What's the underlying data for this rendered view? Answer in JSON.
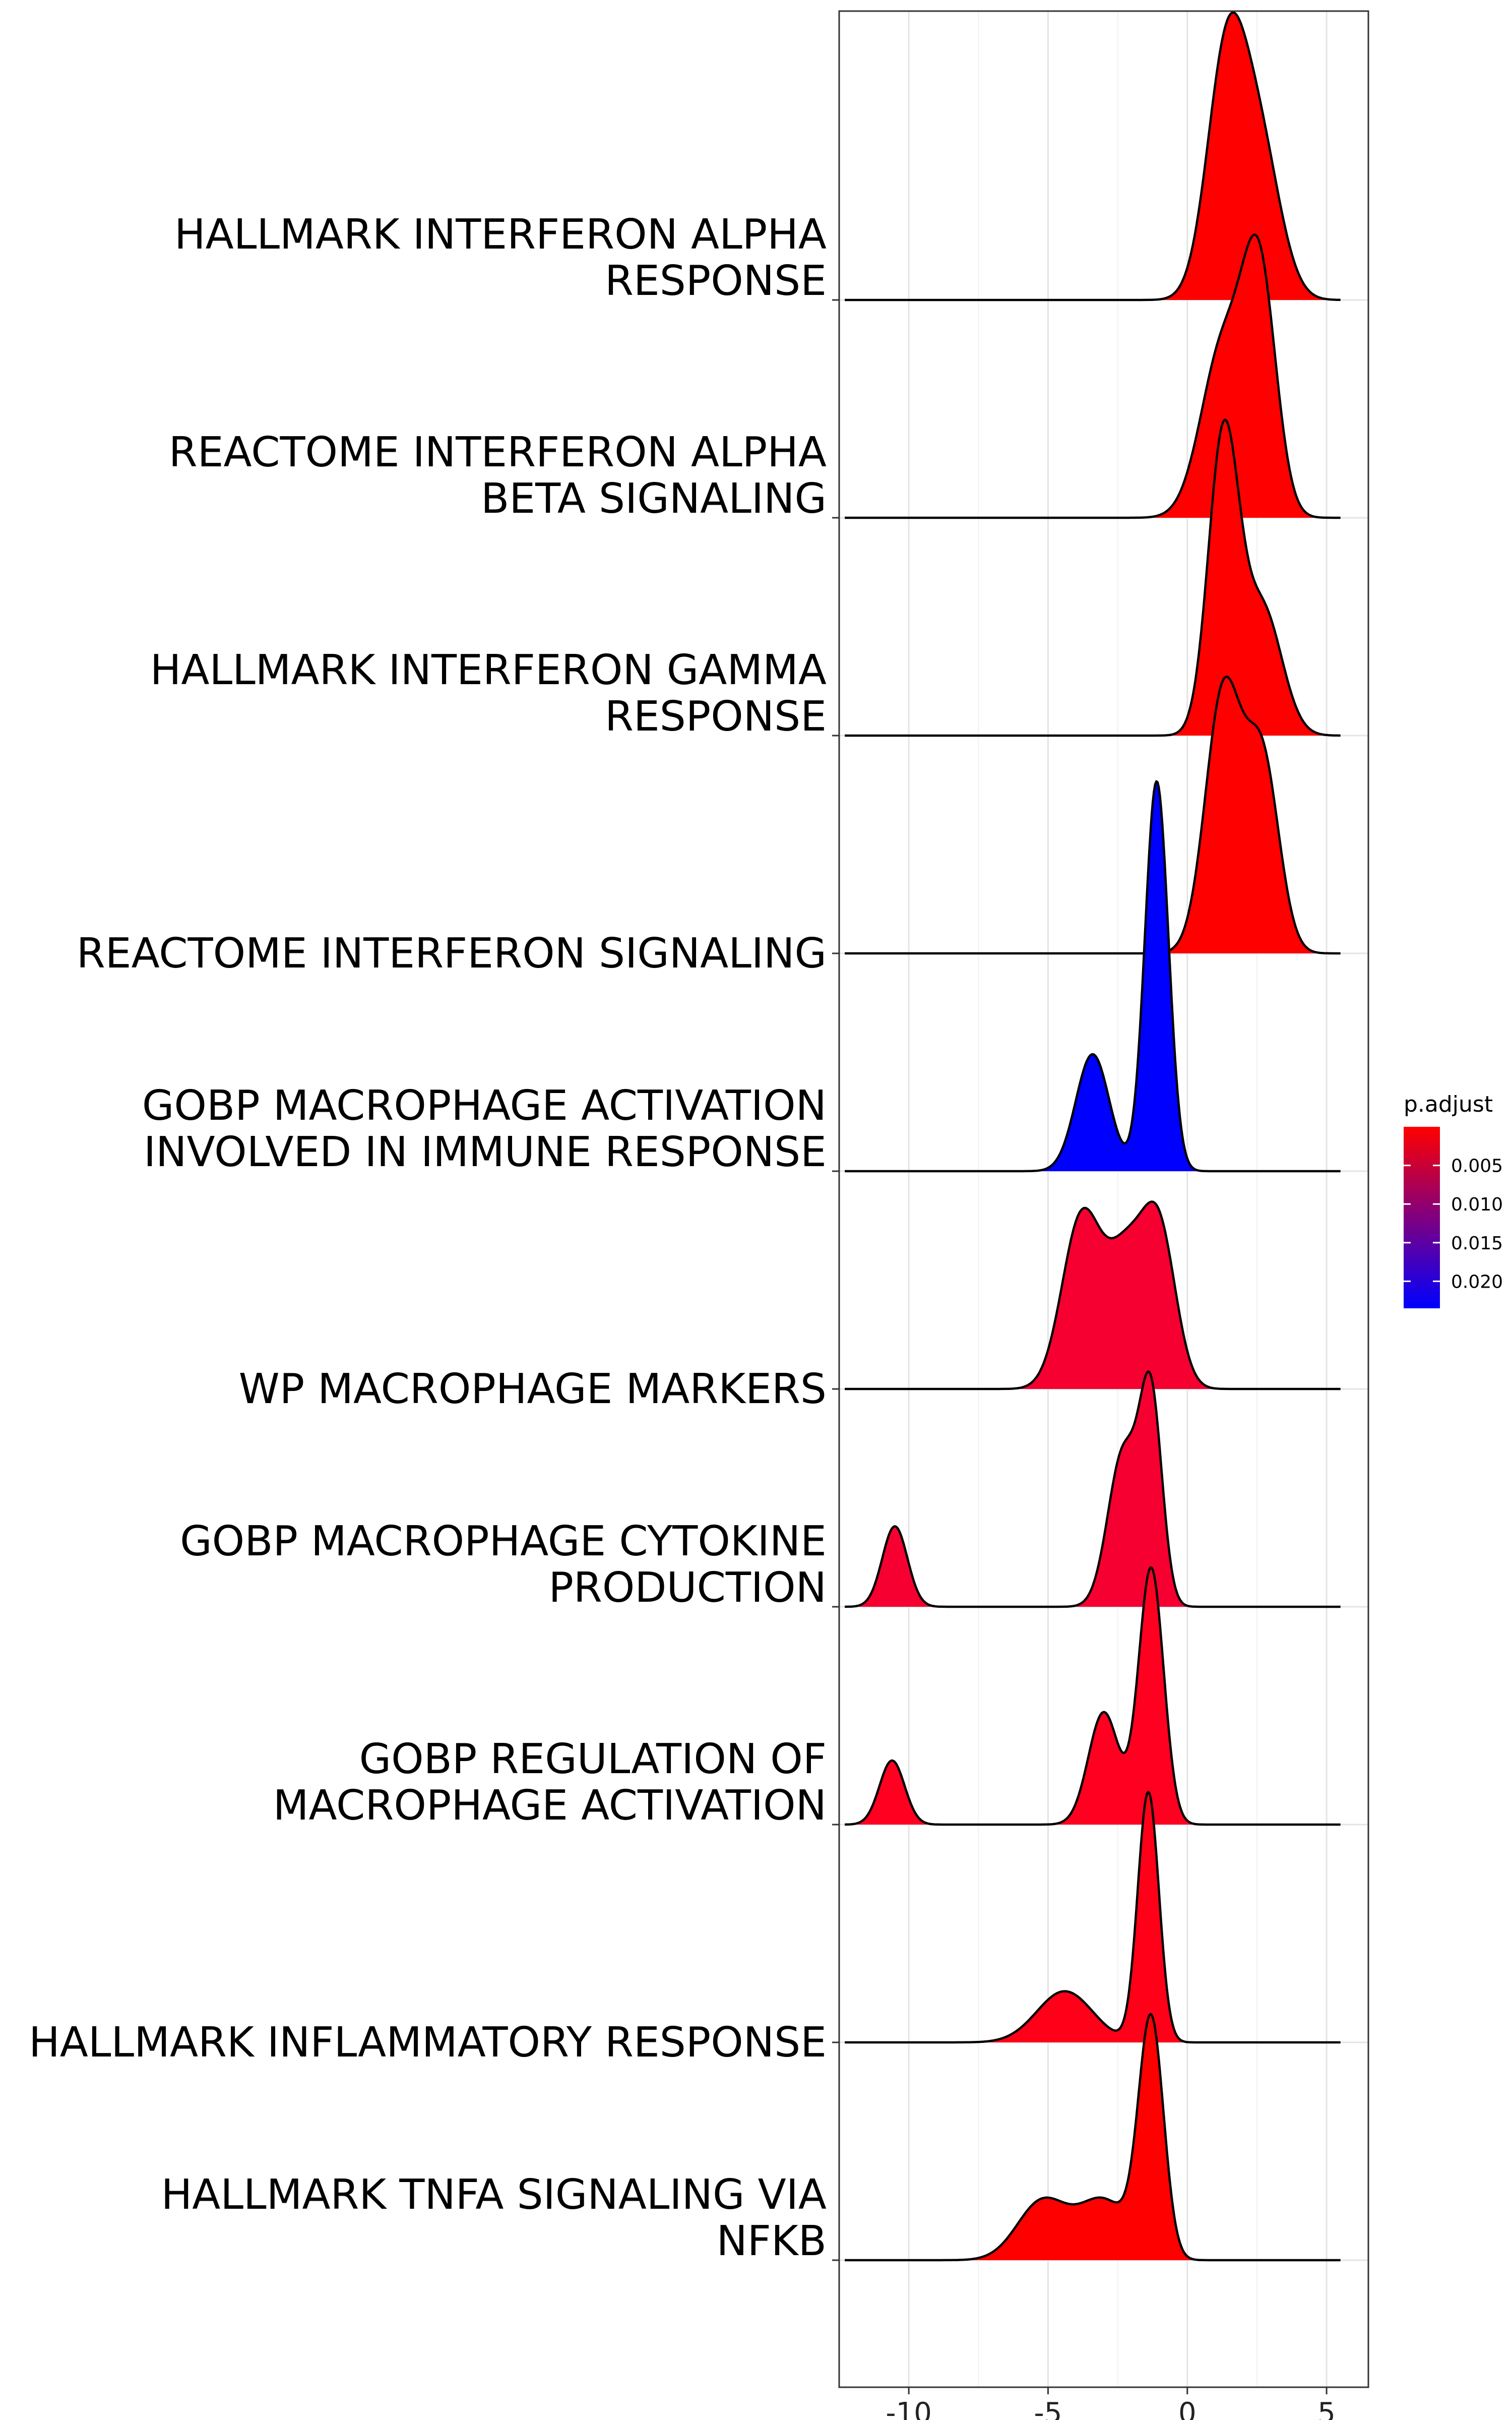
{
  "chart_data": {
    "type": "ridgeline",
    "title": "",
    "xlabel": "",
    "ylabel": "",
    "xlim": [
      -12.5,
      6.5
    ],
    "x_ticks": [
      -10,
      -5,
      0,
      5
    ],
    "x_tick_labels": [
      "-10",
      "-5",
      "0",
      "5"
    ],
    "grid": true,
    "legend": {
      "title": "p.adjust",
      "placement": "right",
      "range": [
        0.0,
        0.0235
      ],
      "ticks": [
        0.005,
        0.01,
        0.015,
        0.02
      ],
      "tick_labels": [
        "0.005",
        "0.010",
        "0.015",
        "0.020"
      ],
      "low_color": "#ff0000",
      "high_color": "#0000ff"
    },
    "density_domain": [
      -12.3,
      5.5
    ],
    "series": [
      {
        "name": "HALLMARK INTERFERON ALPHA RESPONSE",
        "label_lines": [
          "HALLMARK INTERFERON ALPHA",
          "RESPONSE"
        ],
        "p_adjust": 0.0,
        "color": "#ff0000",
        "peak_height": 1.32,
        "components": [
          {
            "mean": 1.4,
            "sd": 0.7,
            "weight": 0.6
          },
          {
            "mean": 2.6,
            "sd": 0.75,
            "weight": 0.4
          }
        ]
      },
      {
        "name": "REACTOME INTERFERON ALPHA BETA SIGNALING",
        "label_lines": [
          "REACTOME INTERFERON ALPHA",
          "BETA SIGNALING"
        ],
        "p_adjust": 0.0,
        "color": "#ff0000",
        "peak_height": 1.3,
        "components": [
          {
            "mean": 1.3,
            "sd": 0.8,
            "weight": 0.5
          },
          {
            "mean": 2.6,
            "sd": 0.6,
            "weight": 0.5
          }
        ]
      },
      {
        "name": "HALLMARK INTERFERON GAMMA RESPONSE",
        "label_lines": [
          "HALLMARK INTERFERON GAMMA",
          "RESPONSE"
        ],
        "p_adjust": 0.0,
        "color": "#ff0000",
        "peak_height": 1.45,
        "components": [
          {
            "mean": 1.3,
            "sd": 0.55,
            "weight": 0.65
          },
          {
            "mean": 2.7,
            "sd": 0.7,
            "weight": 0.35
          }
        ]
      },
      {
        "name": "REACTOME INTERFERON SIGNALING",
        "label_lines": [
          "REACTOME INTERFERON SIGNALING"
        ],
        "p_adjust": 0.0,
        "color": "#ff0000",
        "peak_height": 1.27,
        "components": [
          {
            "mean": 1.3,
            "sd": 0.65,
            "weight": 0.6
          },
          {
            "mean": 2.7,
            "sd": 0.6,
            "weight": 0.4
          }
        ]
      },
      {
        "name": "GOBP MACROPHAGE ACTIVATION INVOLVED IN IMMUNE RESPONSE",
        "label_lines": [
          "GOBP MACROPHAGE ACTIVATION",
          "INVOLVED IN IMMUNE RESPONSE"
        ],
        "p_adjust": 0.0235,
        "color": "#0000ff",
        "peak_height": 1.79,
        "components": [
          {
            "mean": -3.4,
            "sd": 0.6,
            "weight": 0.3
          },
          {
            "mean": -1.1,
            "sd": 0.42,
            "weight": 0.7
          }
        ]
      },
      {
        "name": "WP MACROPHAGE MARKERS",
        "label_lines": [
          "WP MACROPHAGE MARKERS"
        ],
        "p_adjust": 0.0035,
        "color": "#f50030",
        "peak_height": 0.86,
        "components": [
          {
            "mean": -3.8,
            "sd": 0.7,
            "weight": 0.4
          },
          {
            "mean": -2.2,
            "sd": 0.7,
            "weight": 0.3
          },
          {
            "mean": -1.0,
            "sd": 0.6,
            "weight": 0.3
          }
        ]
      },
      {
        "name": "GOBP MACROPHAGE CYTOKINE PRODUCTION",
        "label_lines": [
          "GOBP MACROPHAGE CYTOKINE",
          "PRODUCTION"
        ],
        "p_adjust": 0.0035,
        "color": "#f50030",
        "peak_height": 1.08,
        "components": [
          {
            "mean": -10.5,
            "sd": 0.45,
            "weight": 0.18
          },
          {
            "mean": -2.3,
            "sd": 0.55,
            "weight": 0.42
          },
          {
            "mean": -1.3,
            "sd": 0.4,
            "weight": 0.4
          }
        ]
      },
      {
        "name": "GOBP REGULATION OF MACROPHAGE ACTIVATION",
        "label_lines": [
          "GOBP REGULATION OF",
          "MACROPHAGE ACTIVATION"
        ],
        "p_adjust": 0.002,
        "color": "#ff0020",
        "peak_height": 1.18,
        "components": [
          {
            "mean": -10.6,
            "sd": 0.45,
            "weight": 0.14
          },
          {
            "mean": -3.0,
            "sd": 0.55,
            "weight": 0.3
          },
          {
            "mean": -1.3,
            "sd": 0.45,
            "weight": 0.56
          }
        ]
      },
      {
        "name": "HALLMARK INFLAMMATORY RESPONSE",
        "label_lines": [
          "HALLMARK INFLAMMATORY RESPONSE"
        ],
        "p_adjust": 0.0015,
        "color": "#ff0018",
        "peak_height": 1.15,
        "components": [
          {
            "mean": -4.4,
            "sd": 1.0,
            "weight": 0.35
          },
          {
            "mean": -1.4,
            "sd": 0.38,
            "weight": 0.65
          }
        ]
      },
      {
        "name": "HALLMARK TNFA SIGNALING VIA NFKB",
        "label_lines": [
          "HALLMARK TNFA SIGNALING VIA",
          "NFKB"
        ],
        "p_adjust": 0.0,
        "color": "#ff0000",
        "peak_height": 1.13,
        "components": [
          {
            "mean": -5.2,
            "sd": 0.9,
            "weight": 0.25
          },
          {
            "mean": -3.0,
            "sd": 0.9,
            "weight": 0.25
          },
          {
            "mean": -1.3,
            "sd": 0.45,
            "weight": 0.5
          }
        ]
      }
    ]
  }
}
